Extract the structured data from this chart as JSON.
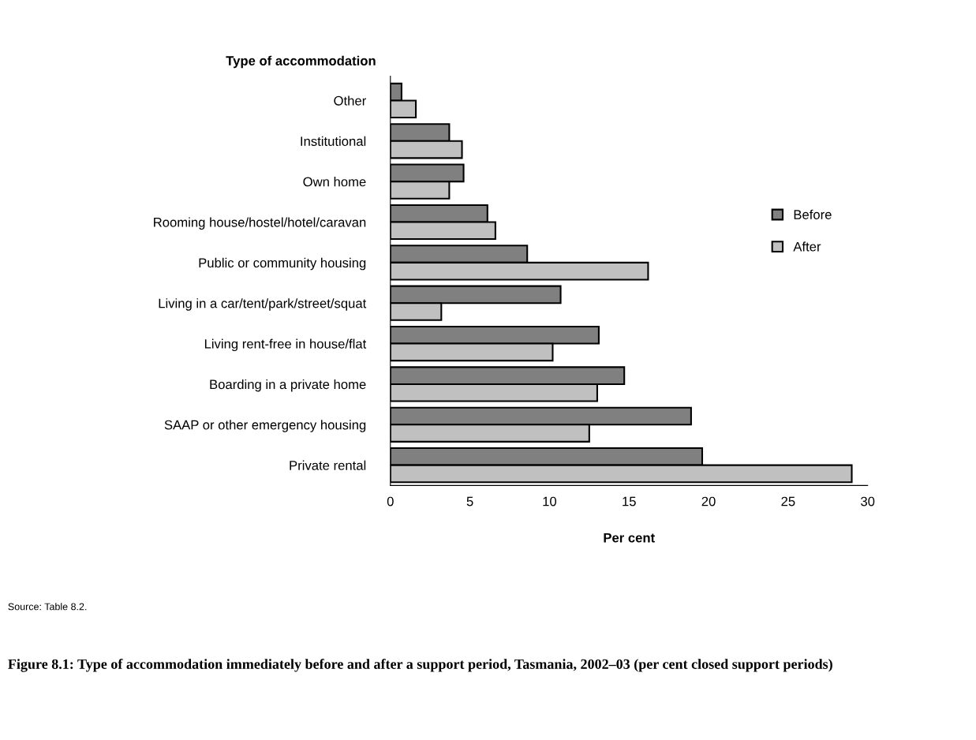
{
  "chart_data": {
    "type": "bar",
    "orientation": "horizontal",
    "title": "Figure 8.1: Type of accommodation immediately before and after a support period, Tasmania, 2002–03 (per cent closed support periods)",
    "xlabel": "Per cent",
    "ylabel": "Type of accommodation",
    "annotations": [
      "Source: Table 8.2."
    ],
    "categories": [
      "Other",
      "Institutional",
      "Own home",
      "Rooming house/hostel/hotel/caravan",
      "Public or community housing",
      "Living in a car/tent/park/street/squat",
      "Living rent-free in house/flat",
      "Boarding in a private home",
      "SAAP or other emergency housing",
      "Private rental"
    ],
    "series": [
      {
        "name": "Before",
        "color": "#808080",
        "values": [
          0.7,
          3.7,
          4.6,
          6.1,
          8.6,
          10.7,
          13.1,
          14.7,
          18.9,
          19.6
        ]
      },
      {
        "name": "After",
        "color": "#c0c0c0",
        "values": [
          1.6,
          4.5,
          3.7,
          6.6,
          16.2,
          3.2,
          10.2,
          13.0,
          12.5,
          29.0
        ]
      }
    ],
    "xlim": [
      0,
      30
    ],
    "xticks": [
      0,
      5,
      10,
      15,
      20,
      25,
      30
    ],
    "grid": false,
    "legend": "right"
  }
}
